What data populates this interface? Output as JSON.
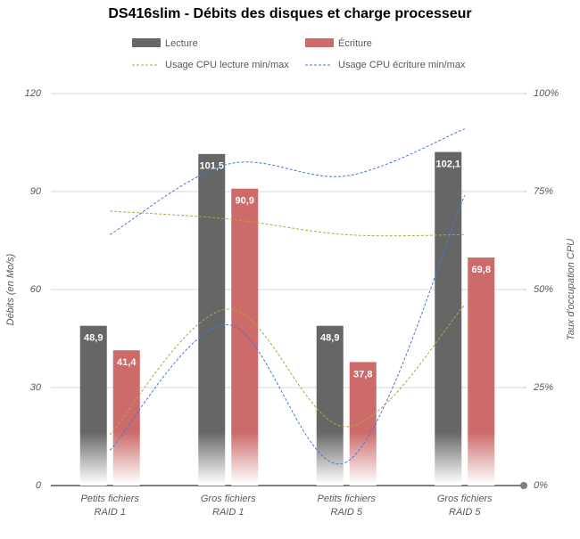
{
  "chart_data": {
    "type": "bar",
    "title": "DS416slim - Débits des disques et charge processeur",
    "y_label": "Débits (en Mo/s)",
    "y2_label": "Taux d'occupation CPU",
    "categories": [
      [
        "Petits fichiers",
        "RAID 1"
      ],
      [
        "Gros fichiers",
        "RAID 1"
      ],
      [
        "Petits fichiers",
        "RAID 5"
      ],
      [
        "Gros fichiers",
        "RAID 5"
      ]
    ],
    "ylim": [
      0,
      120
    ],
    "yticks": [
      0,
      30,
      60,
      90,
      120
    ],
    "y2lim": [
      0,
      100
    ],
    "y2ticks": [
      {
        "value": 0,
        "label": "0%"
      },
      {
        "value": 25,
        "label": "25%"
      },
      {
        "value": 50,
        "label": "50%"
      },
      {
        "value": 75,
        "label": "75%"
      },
      {
        "value": 100,
        "label": "100%"
      }
    ],
    "grid": true,
    "series": [
      {
        "name": "Lecture",
        "type": "bar",
        "color": "#666666",
        "values": [
          48.9,
          101.5,
          48.9,
          102.1
        ],
        "value_labels": [
          "48,9",
          "101,5",
          "48,9",
          "102,1"
        ]
      },
      {
        "name": "Écriture",
        "type": "bar",
        "color": "#cd6a6a",
        "values": [
          41.4,
          90.9,
          37.8,
          69.8
        ],
        "value_labels": [
          "41,4",
          "90,9",
          "37,8",
          "69,8"
        ]
      },
      {
        "name": "Usage CPU lecture min/max",
        "type": "line",
        "axis": "y2",
        "color": "#b5a642",
        "values": [
          70,
          68,
          64,
          64
        ],
        "min_values": [
          13,
          45,
          15,
          46
        ]
      },
      {
        "name": "Usage CPU écriture min/max",
        "type": "line",
        "axis": "y2",
        "color": "#4a76d4",
        "values": [
          64,
          82,
          79,
          91
        ],
        "min_values": [
          9,
          41,
          6,
          74
        ]
      }
    ]
  }
}
